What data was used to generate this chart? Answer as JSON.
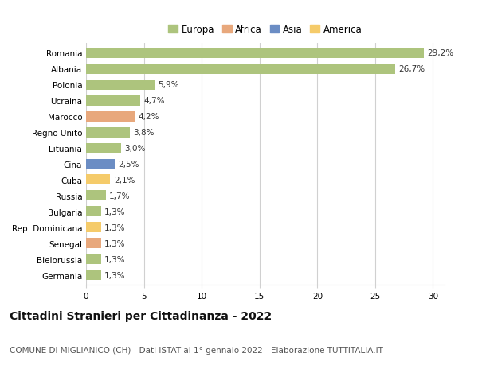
{
  "countries": [
    "Romania",
    "Albania",
    "Polonia",
    "Ucraina",
    "Marocco",
    "Regno Unito",
    "Lituania",
    "Cina",
    "Cuba",
    "Russia",
    "Bulgaria",
    "Rep. Dominicana",
    "Senegal",
    "Bielorussia",
    "Germania"
  ],
  "values": [
    29.2,
    26.7,
    5.9,
    4.7,
    4.2,
    3.8,
    3.0,
    2.5,
    2.1,
    1.7,
    1.3,
    1.3,
    1.3,
    1.3,
    1.3
  ],
  "labels": [
    "29,2%",
    "26,7%",
    "5,9%",
    "4,7%",
    "4,2%",
    "3,8%",
    "3,0%",
    "2,5%",
    "2,1%",
    "1,7%",
    "1,3%",
    "1,3%",
    "1,3%",
    "1,3%",
    "1,3%"
  ],
  "continents": [
    "Europa",
    "Europa",
    "Europa",
    "Europa",
    "Africa",
    "Europa",
    "Europa",
    "Asia",
    "America",
    "Europa",
    "Europa",
    "America",
    "Africa",
    "Europa",
    "Europa"
  ],
  "continent_colors": {
    "Europa": "#adc47d",
    "Africa": "#e8a87c",
    "Asia": "#6b8dc4",
    "America": "#f5cb6a"
  },
  "legend_order": [
    "Europa",
    "Africa",
    "Asia",
    "America"
  ],
  "xlim": [
    0,
    31
  ],
  "xticks": [
    0,
    5,
    10,
    15,
    20,
    25,
    30
  ],
  "title": "Cittadini Stranieri per Cittadinanza - 2022",
  "subtitle": "COMUNE DI MIGLIANICO (CH) - Dati ISTAT al 1° gennaio 2022 - Elaborazione TUTTITALIA.IT",
  "background_color": "#ffffff",
  "grid_color": "#d0d0d0",
  "bar_height": 0.65,
  "title_fontsize": 10,
  "subtitle_fontsize": 7.5,
  "label_fontsize": 7.5,
  "tick_fontsize": 7.5,
  "legend_fontsize": 8.5
}
